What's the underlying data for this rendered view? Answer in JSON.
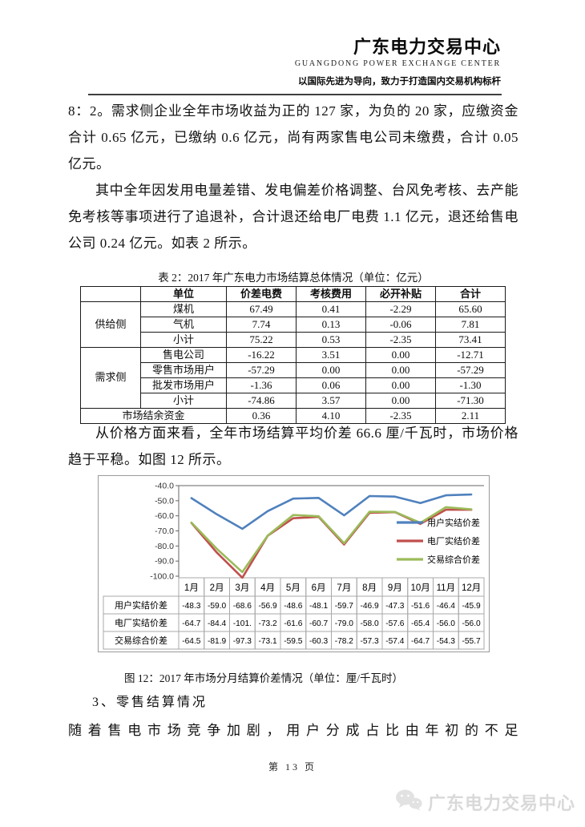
{
  "header": {
    "title": "广东电力交易中心",
    "subtitle": "GUANGDONG  POWER  EXCHANGE  CENTER",
    "tagline": "以国际先进为导向，致力于打造国内交易机构标杆"
  },
  "paragraphs": {
    "p1": "8：2。需求侧企业全年市场收益为正的 127 家，为负的 20 家，应缴资金合计 0.65 亿元，已缴纳 0.6 亿元，尚有两家售电公司未缴费，合计 0.05 亿元。",
    "p2": "其中全年因发用电量差错、发电偏差价格调整、台风免考核、去产能免考核等事项进行了追退补，合计退还给电厂电费 1.1 亿元，退还给售电公司 0.24 亿元。如表 2 所示。",
    "p3": "从价格方面来看，全年市场结算平均价差 66.6 厘/千瓦时，市场价格趋于平稳。如图 12 所示。",
    "p4": "随着售电市场竞争加剧，用户分成占比由年初的不足"
  },
  "table": {
    "caption": "表 2：2017 年广东电力市场结算总体情况（单位：亿元）",
    "headers": [
      "",
      "单位",
      "价差电费",
      "考核费用",
      "必开补贴",
      "合计"
    ],
    "groups": [
      {
        "name": "供给侧",
        "rows": [
          [
            "煤机",
            "67.49",
            "0.41",
            "-2.29",
            "65.60"
          ],
          [
            "气机",
            "7.74",
            "0.13",
            "-0.06",
            "7.81"
          ],
          [
            "小计",
            "75.22",
            "0.53",
            "-2.35",
            "73.41"
          ]
        ]
      },
      {
        "name": "需求侧",
        "rows": [
          [
            "售电公司",
            "-16.22",
            "3.51",
            "0.00",
            "-12.71"
          ],
          [
            "零售市场用户",
            "-57.29",
            "0.00",
            "0.00",
            "-57.29"
          ],
          [
            "批发市场用户",
            "-1.36",
            "0.06",
            "0.00",
            "-1.30"
          ],
          [
            "小计",
            "-74.86",
            "3.57",
            "0.00",
            "-71.30"
          ]
        ]
      }
    ],
    "footer_row": {
      "label": "市场结余资金",
      "values": [
        "0.36",
        "4.10",
        "-2.35",
        "2.11"
      ]
    }
  },
  "chart_data": {
    "type": "line",
    "title": "",
    "categories": [
      "1月",
      "2月",
      "3月",
      "4月",
      "5月",
      "6月",
      "7月",
      "8月",
      "9月",
      "10月",
      "11月",
      "12月"
    ],
    "series": [
      {
        "name": "用户实结价差",
        "color": "#4f81bd",
        "values": [
          -48.3,
          -59.0,
          -68.6,
          -56.9,
          -48.6,
          -48.1,
          -59.7,
          -46.9,
          -47.3,
          -51.6,
          -46.4,
          -45.9
        ],
        "display": [
          "-48.3",
          "-59.0",
          "-68.6",
          "-56.9",
          "-48.6",
          "-48.1",
          "-59.7",
          "-46.9",
          "-47.3",
          "-51.6",
          "-46.4",
          "-45.9"
        ]
      },
      {
        "name": "电厂实结价差",
        "color": "#c0504d",
        "values": [
          -64.7,
          -84.4,
          -101.0,
          -73.2,
          -61.6,
          -60.7,
          -79.0,
          -58.0,
          -57.6,
          -65.4,
          -56.0,
          -56.0
        ],
        "display": [
          "-64.7",
          "-84.4",
          "-101.",
          "-73.2",
          "-61.6",
          "-60.7",
          "-79.0",
          "-58.0",
          "-57.6",
          "-65.4",
          "-56.0",
          "-56.0"
        ]
      },
      {
        "name": "交易综合价差",
        "color": "#9bbb59",
        "values": [
          -64.5,
          -81.9,
          -97.3,
          -73.1,
          -59.5,
          -60.3,
          -78.2,
          -57.3,
          -57.4,
          -64.7,
          -54.3,
          -55.7
        ],
        "display": [
          "-64.5",
          "-81.9",
          "-97.3",
          "-73.1",
          "-59.5",
          "-60.3",
          "-78.2",
          "-57.3",
          "-57.4",
          "-64.7",
          "-54.3",
          "-55.7"
        ]
      }
    ],
    "ylim": [
      -100,
      -40
    ],
    "yticks": [
      "-40.0",
      "-50.0",
      "-60.0",
      "-70.0",
      "-80.0",
      "-90.0",
      "-100.0"
    ],
    "grid": false,
    "legend_position": "right-overlay",
    "has_data_table": true
  },
  "figure": {
    "caption": "图 12：2017 年市场分月结算价差情况（单位：厘/千瓦时）"
  },
  "section_heading": "3、零售结算情况",
  "footer": {
    "page_label": "第 13 页",
    "watermark_text": "广东电力交易中心"
  },
  "colors": {
    "series_user": "#4f81bd",
    "series_plant": "#c0504d",
    "series_composite": "#9bbb59",
    "axis": "#666666",
    "chart_grid_border": "#a8a8a8",
    "watermark": "#d9d9d9"
  }
}
